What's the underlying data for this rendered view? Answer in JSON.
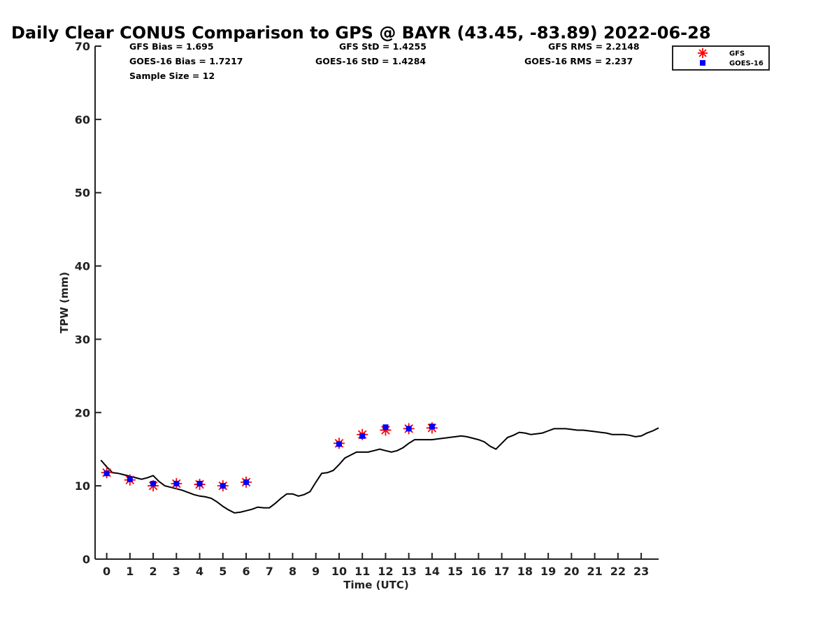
{
  "chart_data": {
    "type": "line",
    "title": "Daily Clear CONUS Comparison to GPS @ BAYR (43.45, -83.89) 2022-06-28",
    "xlabel": "Time (UTC)",
    "ylabel": "TPW (mm)",
    "xlim": [
      -0.5,
      23.75
    ],
    "ylim": [
      0,
      70
    ],
    "x_ticks": [
      "0",
      "1",
      "2",
      "3",
      "4",
      "5",
      "6",
      "7",
      "8",
      "9",
      "10",
      "11",
      "12",
      "13",
      "14",
      "15",
      "16",
      "17",
      "18",
      "19",
      "20",
      "21",
      "22",
      "23"
    ],
    "y_ticks": [
      "0",
      "10",
      "20",
      "30",
      "40",
      "50",
      "60",
      "70"
    ],
    "grid": false,
    "legend_position": "top-right",
    "stats": {
      "gfs_bias": "GFS Bias = 1.695",
      "goes_bias": "GOES-16 Bias = 1.7217",
      "sample_size": "Sample Size = 12",
      "gfs_std": "GFS StD = 1.4255",
      "goes_std": "GOES-16 StD = 1.4284",
      "gfs_rms": "GFS RMS = 2.2148",
      "goes_rms": "GOES-16 RMS = 2.237"
    },
    "series": [
      {
        "marker": "line",
        "color": "#000000",
        "x": [
          -0.25,
          0,
          0.25,
          0.5,
          0.75,
          1,
          1.25,
          1.5,
          1.75,
          2,
          2.25,
          2.5,
          2.75,
          3,
          3.25,
          3.5,
          3.75,
          4,
          4.25,
          4.5,
          4.75,
          5,
          5.25,
          5.5,
          5.75,
          6,
          6.25,
          6.5,
          6.75,
          7,
          7.25,
          7.5,
          7.75,
          8,
          8.25,
          8.5,
          8.75,
          9,
          9.25,
          9.5,
          9.75,
          10,
          10.25,
          10.5,
          10.75,
          11,
          11.25,
          11.5,
          11.75,
          12,
          12.25,
          12.5,
          12.75,
          13,
          13.25,
          13.5,
          13.75,
          14,
          14.25,
          14.5,
          14.75,
          15,
          15.25,
          15.5,
          15.75,
          16,
          16.25,
          16.5,
          16.75,
          17,
          17.25,
          17.5,
          17.75,
          18,
          18.25,
          18.5,
          18.75,
          19,
          19.25,
          19.5,
          19.75,
          20,
          20.25,
          20.5,
          20.75,
          21,
          21.25,
          21.5,
          21.75,
          22,
          22.25,
          22.5,
          22.75,
          23,
          23.25,
          23.5,
          23.75
        ],
        "y": [
          13.5,
          12.6,
          11.8,
          11.7,
          11.5,
          11.3,
          11.1,
          10.9,
          11.1,
          11.4,
          10.6,
          10.0,
          9.8,
          9.6,
          9.4,
          9.1,
          8.8,
          8.6,
          8.5,
          8.3,
          7.8,
          7.2,
          6.7,
          6.3,
          6.4,
          6.6,
          6.8,
          7.1,
          7.0,
          7.0,
          7.6,
          8.3,
          8.9,
          8.9,
          8.6,
          8.8,
          9.2,
          10.5,
          11.7,
          11.8,
          12.1,
          12.9,
          13.8,
          14.2,
          14.6,
          14.6,
          14.6,
          14.8,
          15.0,
          14.8,
          14.6,
          14.8,
          15.2,
          15.8,
          16.3,
          16.3,
          16.3,
          16.3,
          16.4,
          16.5,
          16.6,
          16.7,
          16.8,
          16.7,
          16.5,
          16.3,
          16.0,
          15.4,
          15.0,
          15.8,
          16.6,
          16.9,
          17.3,
          17.2,
          17.0,
          17.1,
          17.2,
          17.5,
          17.8,
          17.8,
          17.8,
          17.7,
          17.6,
          17.6,
          17.5,
          17.4,
          17.3,
          17.2,
          17.0,
          17.0,
          17.0,
          16.9,
          16.7,
          16.8,
          17.2,
          17.5,
          17.9
        ]
      },
      {
        "name": "GFS",
        "marker": "asterisk",
        "color": "#ff0000",
        "x": [
          0,
          1,
          2,
          3,
          4,
          5,
          6,
          10,
          11,
          12,
          13,
          14
        ],
        "y": [
          11.8,
          10.8,
          10.0,
          10.3,
          10.2,
          10.0,
          10.5,
          15.8,
          17.0,
          17.6,
          17.8,
          17.9
        ]
      },
      {
        "name": "GOES-16",
        "marker": "square",
        "color": "#0000ff",
        "x": [
          0,
          1,
          2,
          3,
          4,
          5,
          6,
          10,
          11,
          12,
          13,
          14
        ],
        "y": [
          11.7,
          10.9,
          10.3,
          10.3,
          10.3,
          10.0,
          10.5,
          15.7,
          16.8,
          18.0,
          17.8,
          18.1
        ]
      }
    ]
  }
}
